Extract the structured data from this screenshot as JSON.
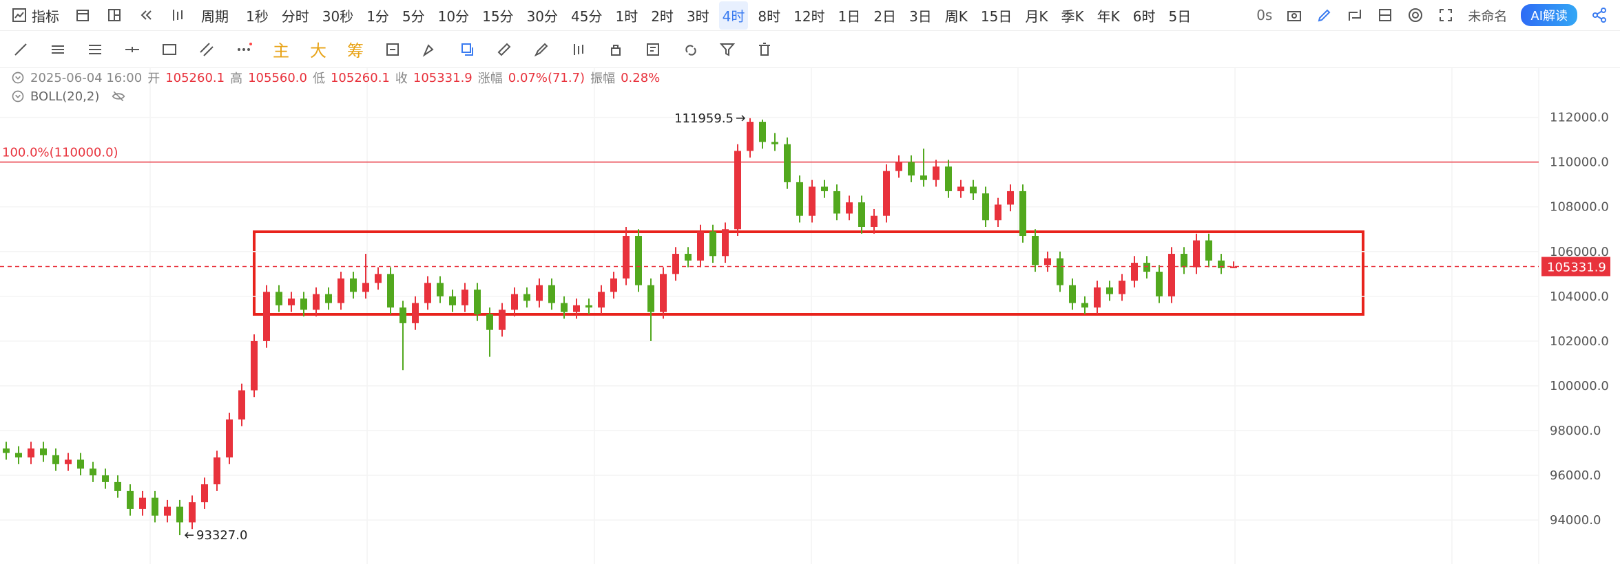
{
  "toolbar": {
    "indicator": "指标",
    "period": "周期",
    "intervals": [
      "1秒",
      "分时",
      "30秒",
      "1分",
      "5分",
      "10分",
      "15分",
      "30分",
      "45分",
      "1时",
      "2时",
      "3时",
      "4时",
      "8时",
      "12时",
      "1日",
      "2日",
      "3日",
      "周K",
      "15日",
      "月K",
      "季K",
      "年K",
      "6时",
      "5日"
    ],
    "selected_interval": 12,
    "timer": "0s",
    "file_name": "未命名",
    "ai_button": "AI解读"
  },
  "drawing_toolbar": {
    "main": "主",
    "large": "大",
    "chips": "筹"
  },
  "info": {
    "time": "2025-06-04 16:00",
    "open_label": "开",
    "open": "105260.1",
    "high_label": "高",
    "high": "105560.0",
    "low_label": "低",
    "low": "105260.1",
    "close_label": "收",
    "close": "105331.9",
    "change_label": "涨幅",
    "change": "0.07%(71.7)",
    "amplitude_label": "振幅",
    "amplitude": "0.28%",
    "indicator": "BOLL(20,2)"
  },
  "chart_data": {
    "type": "candlestick",
    "up_color": "#e8323c",
    "down_color": "#52a81e",
    "grid": true,
    "open": [
      97200,
      97000,
      96800,
      97200,
      96900,
      96500,
      96700,
      96300,
      96000,
      95700,
      95300,
      94500,
      95000,
      94200,
      94600,
      93900,
      94800,
      95600,
      96800,
      98500,
      99800,
      102000,
      104200,
      103600,
      103900,
      103400,
      104100,
      103700,
      104800,
      104200,
      104600,
      105000,
      103500,
      102800,
      103700,
      104600,
      104000,
      103600,
      104300,
      103200,
      102500,
      103400,
      104100,
      103800,
      104500,
      103700,
      103300,
      103600,
      103500,
      104200,
      104800,
      106700,
      104500,
      103300,
      105000,
      105900,
      105600,
      106900,
      105800,
      107000,
      110500,
      111800,
      110900,
      110800,
      109100,
      107600,
      108900,
      108700,
      107700,
      108200,
      107100,
      107600,
      109600,
      110000,
      109400,
      109200,
      109800,
      108700,
      108900,
      108600,
      107400,
      108100,
      108700,
      106700,
      105400,
      105700,
      104500,
      103700,
      103500,
      104400,
      104100,
      104700,
      105500,
      105100,
      104000,
      105900,
      105300,
      106500,
      105600,
      105260.1
    ],
    "high": [
      97500,
      97300,
      97500,
      97500,
      97200,
      97000,
      97000,
      96600,
      96300,
      96000,
      95600,
      95300,
      95300,
      94900,
      94900,
      95100,
      95900,
      97100,
      98800,
      100100,
      102300,
      104500,
      104500,
      104200,
      104200,
      104400,
      104400,
      105100,
      105100,
      105900,
      105300,
      105300,
      103800,
      104000,
      104900,
      104900,
      104300,
      104600,
      104600,
      103500,
      103700,
      104400,
      104400,
      104800,
      104800,
      104000,
      103900,
      103900,
      104500,
      105100,
      107100,
      107000,
      104800,
      105300,
      106200,
      106200,
      107200,
      107200,
      107300,
      110800,
      111959.5,
      111900,
      111300,
      111100,
      109400,
      109200,
      109200,
      109000,
      108500,
      108500,
      107900,
      109900,
      110300,
      110300,
      110600,
      110100,
      110100,
      109200,
      109200,
      108900,
      108400,
      109000,
      109000,
      107000,
      106000,
      106000,
      104800,
      104000,
      104700,
      104700,
      105000,
      105800,
      105800,
      105400,
      106200,
      106200,
      106800,
      106800,
      105900,
      105560
    ],
    "low": [
      96700,
      96500,
      96500,
      96600,
      96200,
      96200,
      96000,
      95700,
      95400,
      95000,
      94200,
      94200,
      93900,
      93900,
      93327,
      93600,
      94500,
      95300,
      96500,
      98200,
      99500,
      101700,
      103300,
      103300,
      103100,
      103100,
      103400,
      103400,
      103900,
      103900,
      104300,
      103200,
      100700,
      102500,
      103400,
      103700,
      103300,
      103300,
      102900,
      101300,
      102200,
      103100,
      103500,
      103500,
      103400,
      103000,
      103000,
      103200,
      103200,
      103900,
      104500,
      104200,
      102000,
      103000,
      104700,
      105300,
      105300,
      105500,
      105500,
      106700,
      110200,
      110600,
      110500,
      108800,
      107300,
      107300,
      108400,
      107400,
      107400,
      106800,
      106800,
      107300,
      109300,
      109100,
      108900,
      108900,
      108400,
      108400,
      108300,
      107100,
      107100,
      107800,
      106400,
      105100,
      105100,
      104200,
      103400,
      103200,
      103200,
      103800,
      103800,
      104400,
      104800,
      103700,
      103700,
      105000,
      105000,
      105300,
      105000,
      105260.1
    ],
    "close": [
      97000,
      96800,
      97200,
      96900,
      96500,
      96700,
      96300,
      96000,
      95700,
      95300,
      94500,
      95000,
      94200,
      94600,
      93900,
      94800,
      95600,
      96800,
      98500,
      99800,
      102000,
      104200,
      103600,
      103900,
      103400,
      104100,
      103700,
      104800,
      104200,
      104600,
      105000,
      103500,
      102800,
      103700,
      104600,
      104000,
      103600,
      104300,
      103200,
      102500,
      103400,
      104100,
      103800,
      104500,
      103700,
      103300,
      103600,
      103500,
      104200,
      104800,
      106700,
      104500,
      103300,
      105000,
      105900,
      105600,
      106900,
      105800,
      107000,
      110500,
      111800,
      110900,
      110800,
      109100,
      107600,
      108900,
      108700,
      107700,
      108200,
      107100,
      107600,
      109600,
      110000,
      109400,
      109200,
      109800,
      108700,
      108900,
      108600,
      107400,
      108100,
      108700,
      106700,
      105400,
      105700,
      104500,
      103700,
      103500,
      104400,
      104100,
      104700,
      105500,
      105100,
      104000,
      105900,
      105300,
      106500,
      105600,
      105260.1,
      105331.9
    ],
    "ylim": [
      92100,
      114200
    ],
    "yticks": [
      {
        "value": 94000,
        "label": "94000.0"
      },
      {
        "value": 96000,
        "label": "96000.0"
      },
      {
        "value": 98000,
        "label": "98000.0"
      },
      {
        "value": 100000,
        "label": "100000.0"
      },
      {
        "value": 102000,
        "label": "102000.0"
      },
      {
        "value": 104000,
        "label": "104000.0"
      },
      {
        "value": 106000,
        "label": "106000.0"
      },
      {
        "value": 108000,
        "label": "108000.0"
      },
      {
        "value": 110000,
        "label": "110000.0"
      },
      {
        "value": 112000,
        "label": "112000.0"
      }
    ],
    "levels": [
      {
        "value": 110000,
        "label": "100.0%(110000.0)"
      }
    ],
    "annotations": [
      {
        "value": 111959.5,
        "label": "111959.5",
        "index": 60,
        "side": "left"
      },
      {
        "value": 93327,
        "label": "93327.0",
        "index": 14,
        "side": "right"
      }
    ]
  }
}
